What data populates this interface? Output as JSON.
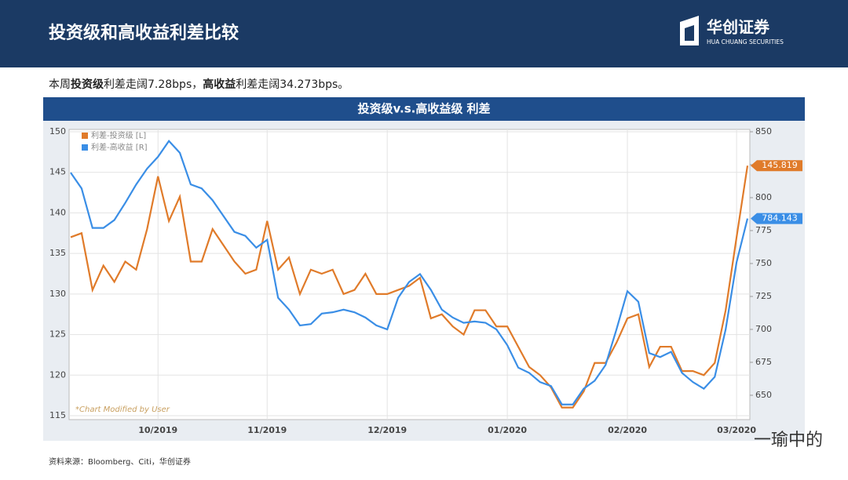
{
  "header": {
    "title": "投资级和高收益利差比较",
    "logo_cn": "华创证券",
    "logo_en": "HUA CHUANG SECURITIES"
  },
  "summary": [
    "本周",
    "投资级",
    "利差走阔7.28bps，",
    "高收益",
    "利差走阔34.273bps。"
  ],
  "chart_header": "投资级v.s.高收益级 利差",
  "source": "资料来源：Bloomberg、Citi，华创证券",
  "watermark": "一瑜中的",
  "chart_data": {
    "type": "line",
    "annotation": "*Chart Modified by User",
    "categories": [
      null,
      null,
      null,
      null,
      null,
      null,
      null,
      null,
      "10/2019",
      null,
      null,
      null,
      null,
      null,
      null,
      null,
      null,
      null,
      "11/2019",
      null,
      null,
      null,
      null,
      null,
      null,
      null,
      null,
      null,
      null,
      "12/2019",
      null,
      null,
      null,
      null,
      null,
      null,
      null,
      null,
      null,
      null,
      "01/2020",
      null,
      null,
      null,
      null,
      null,
      null,
      null,
      null,
      null,
      null,
      "02/2020",
      null,
      null,
      null,
      null,
      null,
      null,
      null,
      null,
      null,
      "03/2020",
      null
    ],
    "series": [
      {
        "name": "利差-投资级 [L]",
        "color": "#e07b2a",
        "axis": "y",
        "values": [
          137,
          137.5,
          130.5,
          133.5,
          131.5,
          134,
          133,
          138,
          144.5,
          139,
          142,
          134,
          134,
          138,
          136,
          134,
          132.5,
          133,
          139,
          133,
          134.5,
          130,
          133,
          132.5,
          133,
          130,
          130.5,
          132.5,
          130,
          130,
          130.5,
          131,
          132,
          127,
          127.5,
          126,
          125,
          128,
          128,
          126,
          126,
          123.5,
          121,
          120,
          118.5,
          116,
          116,
          118,
          121.5,
          121.5,
          124,
          127,
          127.5,
          121,
          123.5,
          123.5,
          120.5,
          120.5,
          120,
          121.5,
          128,
          137,
          145.819
        ]
      },
      {
        "name": "利差-高收益 [R]",
        "color": "#3a8ee6",
        "axis": "y2",
        "values": [
          819,
          807,
          777,
          777,
          783,
          796,
          810,
          822,
          831,
          843,
          834,
          810,
          807,
          798,
          786,
          774,
          771,
          762,
          768,
          724,
          715,
          703,
          704,
          712,
          713,
          715,
          713,
          709,
          703,
          700,
          724,
          736,
          742,
          730,
          715,
          709,
          705,
          706,
          705,
          700,
          688,
          671,
          667,
          660,
          657,
          643,
          643,
          655,
          661,
          673,
          700,
          729,
          721,
          682,
          679,
          683,
          667,
          660,
          655,
          664,
          700,
          751,
          784.143
        ]
      }
    ],
    "ylim": [
      115,
      150
    ],
    "yticks": [
      115,
      120,
      125,
      130,
      135,
      140,
      145,
      150
    ],
    "y2lim": [
      634.5,
      850
    ],
    "y2ticks": [
      650,
      675,
      700,
      725,
      750,
      775,
      800,
      825,
      850
    ],
    "grid": true,
    "legend": "top-left"
  }
}
